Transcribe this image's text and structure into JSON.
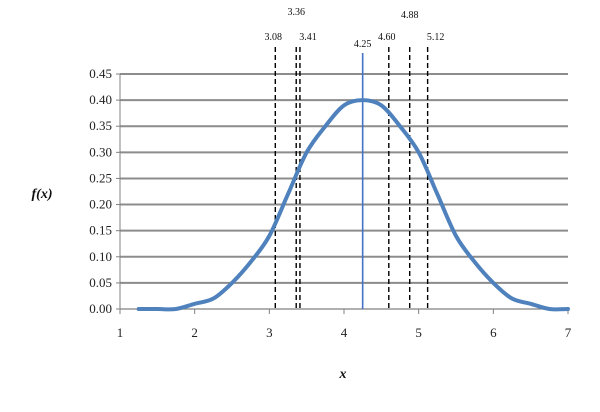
{
  "chart_data": {
    "type": "line",
    "title": "",
    "xlabel": "x",
    "ylabel": "f(x)",
    "xlim": [
      1,
      7
    ],
    "ylim": [
      0,
      0.45
    ],
    "x_ticks": [
      1,
      2,
      3,
      4,
      5,
      6,
      7
    ],
    "y_ticks": [
      "0.00",
      "0.05",
      "0.10",
      "0.15",
      "0.20",
      "0.25",
      "0.30",
      "0.35",
      "0.40",
      "0.45"
    ],
    "grid": "horizontal",
    "legend": "none",
    "curve_color": "#4f81bd",
    "mean_line_color": "#4472c4",
    "series": [
      {
        "x": [
          1.25,
          1.5,
          1.75,
          2.0,
          2.25,
          2.5,
          2.75,
          3.0,
          3.25,
          3.5,
          3.75,
          4.0,
          4.25,
          4.5,
          4.75,
          5.0,
          5.25,
          5.5,
          5.75,
          6.0,
          6.25,
          6.5,
          6.75,
          7.0
        ],
        "values": [
          0.0,
          0.0,
          0.0,
          0.01,
          0.02,
          0.05,
          0.09,
          0.14,
          0.22,
          0.3,
          0.35,
          0.39,
          0.4,
          0.39,
          0.35,
          0.3,
          0.22,
          0.14,
          0.09,
          0.05,
          0.02,
          0.01,
          0.0,
          0.0
        ]
      }
    ],
    "mean_line": {
      "x": 4.25,
      "label": "4.25"
    },
    "reference_lines": [
      {
        "x": 3.08,
        "label": "3.08"
      },
      {
        "x": 3.36,
        "label": "3.36"
      },
      {
        "x": 3.41,
        "label": "3.41"
      },
      {
        "x": 4.6,
        "label": "4.60"
      },
      {
        "x": 4.88,
        "label": "4.88"
      },
      {
        "x": 5.12,
        "label": "5.12"
      }
    ]
  }
}
